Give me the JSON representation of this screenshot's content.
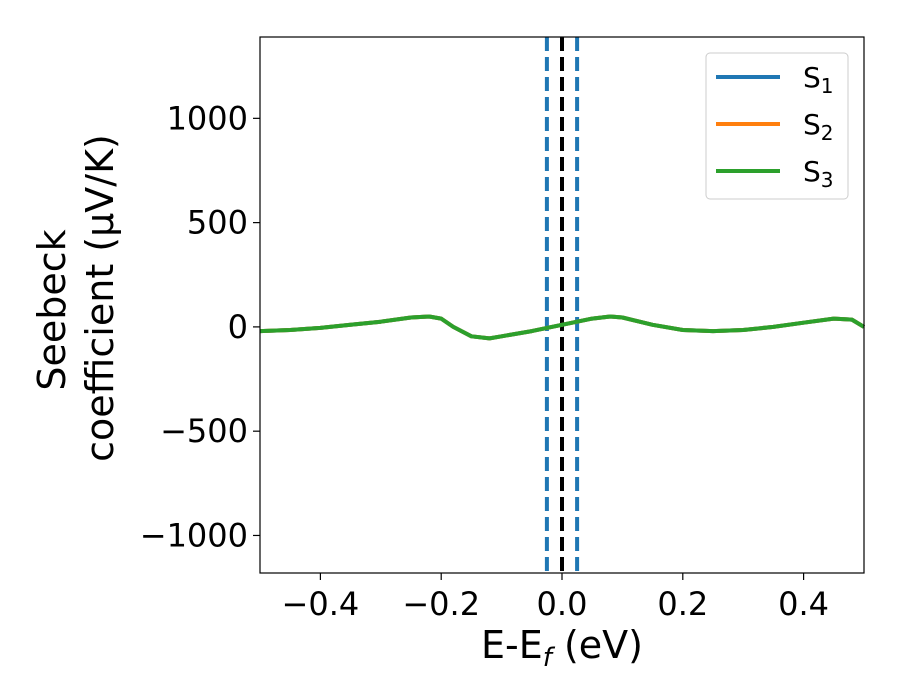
{
  "chart_data": {
    "type": "line",
    "xlabel": "E-E",
    "xlabel_sub": "f",
    "xlabel_unit": " (eV)",
    "ylabel_line1": "Seebeck",
    "ylabel_line2": "coefficient  (μV/K)",
    "xlim": [
      -0.5,
      0.5
    ],
    "ylim": [
      -1180,
      1390
    ],
    "xticks": [
      -0.4,
      -0.2,
      0.0,
      0.2,
      0.4
    ],
    "xtick_labels": [
      "−0.4",
      "−0.2",
      "0.0",
      "0.2",
      "0.4"
    ],
    "yticks": [
      -1000,
      -500,
      0,
      500,
      1000
    ],
    "ytick_labels": [
      "−1000",
      "−500",
      "0",
      "500",
      "1000"
    ],
    "grid": false,
    "legend_position": "top-right",
    "series": [
      {
        "name": "S",
        "name_sub": "1",
        "color": "#1f77b4",
        "x": [
          -0.5,
          -0.45,
          -0.4,
          -0.35,
          -0.3,
          -0.25,
          -0.22,
          -0.2,
          -0.18,
          -0.15,
          -0.12,
          -0.1,
          -0.05,
          0.0,
          0.05,
          0.08,
          0.1,
          0.15,
          0.2,
          0.25,
          0.3,
          0.35,
          0.4,
          0.45,
          0.48,
          0.5
        ],
        "y": [
          -20,
          -15,
          -5,
          10,
          25,
          45,
          50,
          40,
          0,
          -45,
          -55,
          -45,
          -20,
          10,
          40,
          50,
          45,
          10,
          -15,
          -20,
          -15,
          0,
          20,
          40,
          35,
          0
        ]
      },
      {
        "name": "S",
        "name_sub": "2",
        "color": "#ff7f0e",
        "x": [
          -0.5,
          -0.45,
          -0.4,
          -0.35,
          -0.3,
          -0.25,
          -0.22,
          -0.2,
          -0.18,
          -0.15,
          -0.12,
          -0.1,
          -0.05,
          0.0,
          0.05,
          0.08,
          0.1,
          0.15,
          0.2,
          0.25,
          0.3,
          0.35,
          0.4,
          0.45,
          0.48,
          0.5
        ],
        "y": [
          -20,
          -15,
          -5,
          10,
          25,
          45,
          50,
          40,
          0,
          -45,
          -55,
          -45,
          -20,
          10,
          40,
          50,
          45,
          10,
          -15,
          -20,
          -15,
          0,
          20,
          40,
          35,
          0
        ]
      },
      {
        "name": "S",
        "name_sub": "3",
        "color": "#2ca02c",
        "x": [
          -0.5,
          -0.45,
          -0.4,
          -0.35,
          -0.3,
          -0.25,
          -0.22,
          -0.2,
          -0.18,
          -0.15,
          -0.12,
          -0.1,
          -0.05,
          0.0,
          0.05,
          0.08,
          0.1,
          0.15,
          0.2,
          0.25,
          0.3,
          0.35,
          0.4,
          0.45,
          0.48,
          0.5
        ],
        "y": [
          -20,
          -15,
          -5,
          10,
          25,
          45,
          50,
          40,
          0,
          -45,
          -55,
          -45,
          -20,
          10,
          40,
          50,
          45,
          10,
          -15,
          -20,
          -15,
          0,
          20,
          40,
          35,
          0
        ]
      }
    ],
    "vlines": [
      {
        "x": -0.025,
        "color": "#1f77b4",
        "style": "dashed"
      },
      {
        "x": 0.025,
        "color": "#1f77b4",
        "style": "dashed"
      },
      {
        "x": 0.0,
        "color": "#000000",
        "style": "dashed"
      }
    ]
  }
}
